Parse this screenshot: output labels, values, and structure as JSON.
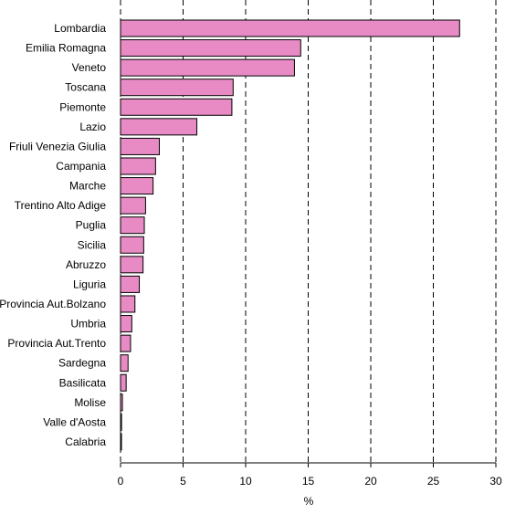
{
  "chart_data": {
    "type": "bar",
    "orientation": "horizontal",
    "title": "",
    "xlabel": "%",
    "ylabel": "",
    "xlim": [
      0,
      30
    ],
    "x_ticks": [
      "0",
      "5",
      "10",
      "15",
      "20",
      "25",
      "30"
    ],
    "grid": "vertical dashed",
    "bar_color": "#e88bc4",
    "categories": [
      "Lombardia",
      "Emilia Romagna",
      "Veneto",
      "Toscana",
      "Piemonte",
      "Lazio",
      "Friuli Venezia Giulia",
      "Campania",
      "Marche",
      "Trentino Alto Adige",
      "Puglia",
      "Sicilia",
      "Abruzzo",
      "Liguria",
      "Provincia Aut.Bolzano",
      "Umbria",
      "Provincia Aut.Trento",
      "Sardegna",
      "Basilicata",
      "Molise",
      "Valle d'Aosta",
      "Calabria"
    ],
    "values": [
      27.1,
      14.4,
      13.9,
      9.0,
      8.9,
      6.1,
      3.1,
      2.8,
      2.6,
      2.0,
      1.9,
      1.85,
      1.8,
      1.5,
      1.15,
      0.9,
      0.8,
      0.6,
      0.45,
      0.15,
      0.08,
      0.05
    ]
  }
}
